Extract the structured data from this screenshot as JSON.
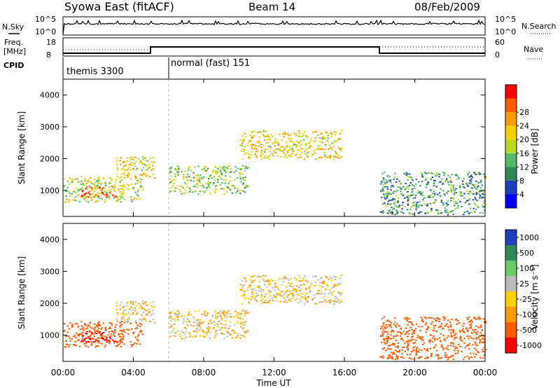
{
  "header": {
    "station": "Syowa East (fitACF)",
    "beam": "Beam 14",
    "date": "08/Feb/2009"
  },
  "panels": {
    "nsky": {
      "left_label": "N.Sky",
      "right_label": "N.Search",
      "left_ticks": [
        "10^5",
        "10^0"
      ],
      "right_ticks": [
        "10^5",
        "10^0"
      ]
    },
    "freq": {
      "left_label_1": "Freq.",
      "left_label_2": "[MHz]",
      "right_label": "Nave",
      "left_ticks": [
        "18",
        "8"
      ],
      "right_ticks": [
        "60",
        "0"
      ]
    },
    "cpid": {
      "label": "CPID",
      "modes": [
        {
          "name": "themis 3300"
        },
        {
          "name": "normal (fast) 151"
        }
      ]
    }
  },
  "colorbars": {
    "power": {
      "label": "Power [dB]",
      "ticks": [
        "4",
        "8",
        "12",
        "16",
        "20",
        "24",
        "28"
      ],
      "colors": [
        "#0000ff",
        "#1f3fbf",
        "#2e8b57",
        "#55b96a",
        "#bada22",
        "#f5d000",
        "#ff9900",
        "#ff5a00",
        "#ff0000"
      ]
    },
    "velocity": {
      "label": "Velocity [m s⁻¹]",
      "ticks": [
        "1000",
        "500",
        "100",
        "25",
        "-25",
        "-100",
        "-500",
        "-1000"
      ],
      "colors": [
        "#2040c0",
        "#2e8b57",
        "#66cc66",
        "#bbbbbb",
        "#ffd000",
        "#ff9900",
        "#ff5a00",
        "#ff0000"
      ]
    }
  },
  "chart_data": [
    {
      "type": "heatmap",
      "name": "power",
      "ylabel": "Slant Range [km]",
      "x_range_hours": [
        0,
        24
      ],
      "ylim": [
        180,
        4500
      ],
      "yticks": [
        "1000",
        "2000",
        "3000",
        "4000"
      ],
      "colorbar": "Power [dB]",
      "echo_regions": [
        {
          "t0": 0.0,
          "t1": 4.5,
          "r0": 650,
          "r1": 1450,
          "power_db": 16
        },
        {
          "t0": 1.0,
          "t1": 3.0,
          "r0": 800,
          "r1": 1150,
          "power_db": 26
        },
        {
          "t0": 3.0,
          "t1": 5.2,
          "r0": 1400,
          "r1": 2100,
          "power_db": 18
        },
        {
          "t0": 6.0,
          "t1": 10.5,
          "r0": 900,
          "r1": 1800,
          "power_db": 14
        },
        {
          "t0": 10.0,
          "t1": 15.8,
          "r0": 2000,
          "r1": 2900,
          "power_db": 18
        },
        {
          "t0": 18.0,
          "t1": 24.0,
          "r0": 250,
          "r1": 1600,
          "power_db": 10
        }
      ]
    },
    {
      "type": "heatmap",
      "name": "velocity",
      "ylabel": "Slant Range [km]",
      "xlabel": "Time UT",
      "x_range_hours": [
        0,
        24
      ],
      "xticks": [
        "00:00",
        "04:00",
        "08:00",
        "12:00",
        "16:00",
        "20:00",
        "00:00"
      ],
      "ylim": [
        180,
        4500
      ],
      "yticks": [
        "1000",
        "2000",
        "3000",
        "4000"
      ],
      "colorbar": "Velocity [m s⁻¹]",
      "echo_regions": [
        {
          "t0": 0.0,
          "t1": 4.5,
          "r0": 650,
          "r1": 1450,
          "velocity": -400
        },
        {
          "t0": 1.0,
          "t1": 3.0,
          "r0": 800,
          "r1": 1150,
          "velocity": -1000
        },
        {
          "t0": 3.0,
          "t1": 5.2,
          "r0": 1400,
          "r1": 2100,
          "velocity": 0
        },
        {
          "t0": 6.0,
          "t1": 10.5,
          "r0": 900,
          "r1": 1800,
          "velocity": 0
        },
        {
          "t0": 10.0,
          "t1": 15.8,
          "r0": 2000,
          "r1": 2900,
          "velocity": 0
        },
        {
          "t0": 18.0,
          "t1": 24.0,
          "r0": 250,
          "r1": 1600,
          "velocity": -300
        }
      ]
    }
  ]
}
